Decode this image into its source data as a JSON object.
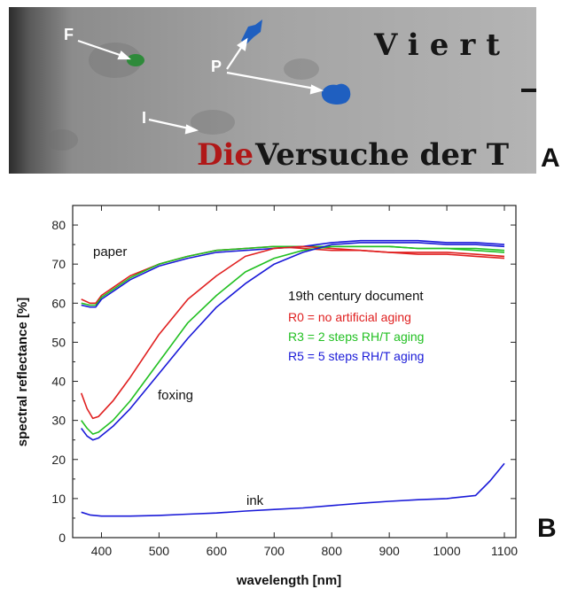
{
  "panel_a": {
    "label": "A",
    "markers": {
      "foxing": "F",
      "pigment": "P",
      "ink": "I"
    },
    "text_line1": "Viert",
    "text_line2_red": "Die",
    "text_line2_black": "Versuche der T"
  },
  "panel_b": {
    "label": "B"
  },
  "chart_data": {
    "type": "line",
    "title": "",
    "xlabel": "wavelength [nm]",
    "ylabel": "spectral reflectance [%]",
    "xlim": [
      350,
      1120
    ],
    "ylim": [
      0,
      85
    ],
    "xticks": [
      400,
      500,
      600,
      700,
      800,
      900,
      1000,
      1100
    ],
    "yticks": [
      0,
      10,
      20,
      30,
      40,
      50,
      60,
      70,
      80
    ],
    "grid": false,
    "legend": {
      "placement": "right-middle",
      "title": "19th century document",
      "entries": [
        {
          "label": "R0 = no artificial aging",
          "color": "#e02020"
        },
        {
          "label": "R3 = 2 steps RH/T aging",
          "color": "#22c022"
        },
        {
          "label": "R5 = 5 steps RH/T aging",
          "color": "#1a1ad8"
        }
      ]
    },
    "annotations": [
      {
        "text": "paper",
        "x": 410,
        "y": 71
      },
      {
        "text": "foxing",
        "x": 470,
        "y": 35
      },
      {
        "text": "ink",
        "x": 700,
        "y": 10
      }
    ],
    "series": [
      {
        "group": "paper",
        "variant": "R0",
        "color": "#e02020",
        "x": [
          365,
          380,
          390,
          400,
          450,
          500,
          550,
          600,
          650,
          700,
          750,
          800,
          850,
          900,
          950,
          1000,
          1050,
          1100
        ],
        "values": [
          61,
          60,
          60,
          62,
          67,
          70,
          72,
          73.5,
          74,
          74.5,
          74,
          73.5,
          73.5,
          73,
          73,
          73,
          72.5,
          72
        ]
      },
      {
        "group": "paper",
        "variant": "R3",
        "color": "#22c022",
        "x": [
          365,
          380,
          390,
          400,
          450,
          500,
          550,
          600,
          650,
          700,
          750,
          800,
          850,
          900,
          950,
          1000,
          1050,
          1100
        ],
        "values": [
          60,
          59.5,
          59.5,
          61.5,
          66.5,
          70,
          72,
          73.5,
          74,
          74.5,
          74.5,
          74.5,
          74.5,
          74.5,
          74,
          74,
          74,
          73.5
        ]
      },
      {
        "group": "paper",
        "variant": "R5",
        "color": "#1a1ad8",
        "x": [
          365,
          380,
          390,
          400,
          450,
          500,
          550,
          600,
          650,
          700,
          750,
          800,
          850,
          900,
          950,
          1000,
          1050,
          1100
        ],
        "values": [
          59.5,
          59,
          59,
          61,
          66,
          69.5,
          71.5,
          73,
          73.5,
          74,
          74.5,
          75.5,
          76,
          76,
          76,
          75.5,
          75.5,
          75
        ]
      },
      {
        "group": "foxing",
        "variant": "R0",
        "color": "#e02020",
        "x": [
          365,
          375,
          385,
          395,
          420,
          450,
          500,
          550,
          600,
          650,
          700,
          750,
          800,
          850,
          900,
          950,
          1000,
          1050,
          1100
        ],
        "values": [
          37,
          33,
          30.5,
          31,
          35,
          41,
          52,
          61,
          67,
          72,
          74,
          74.5,
          74,
          73.5,
          73,
          72.5,
          72.5,
          72,
          71.5
        ]
      },
      {
        "group": "foxing",
        "variant": "R3",
        "color": "#22c022",
        "x": [
          365,
          375,
          385,
          395,
          420,
          450,
          500,
          550,
          600,
          650,
          700,
          750,
          800,
          850,
          900,
          950,
          1000,
          1050,
          1100
        ],
        "values": [
          30,
          28,
          26.5,
          27,
          30,
          35,
          45,
          55,
          62,
          68,
          71.5,
          73.5,
          74.5,
          74.5,
          74.5,
          74,
          74,
          73.5,
          73
        ]
      },
      {
        "group": "foxing",
        "variant": "R5",
        "color": "#1a1ad8",
        "x": [
          365,
          375,
          385,
          395,
          420,
          450,
          500,
          550,
          600,
          650,
          700,
          750,
          800,
          850,
          900,
          950,
          1000,
          1050,
          1100
        ],
        "values": [
          28,
          26,
          25,
          25.5,
          28.5,
          33,
          42,
          51,
          59,
          65,
          70,
          73,
          75,
          75.5,
          75.5,
          75.5,
          75,
          75,
          74.5
        ]
      },
      {
        "group": "ink",
        "variant": "R5",
        "color": "#1a1ad8",
        "x": [
          365,
          380,
          400,
          450,
          500,
          550,
          600,
          650,
          700,
          750,
          800,
          850,
          900,
          950,
          1000,
          1050,
          1075,
          1100
        ],
        "values": [
          6.5,
          5.8,
          5.5,
          5.5,
          5.7,
          6,
          6.3,
          6.8,
          7.2,
          7.6,
          8.2,
          8.8,
          9.3,
          9.7,
          10,
          10.8,
          14.5,
          19
        ]
      }
    ]
  }
}
